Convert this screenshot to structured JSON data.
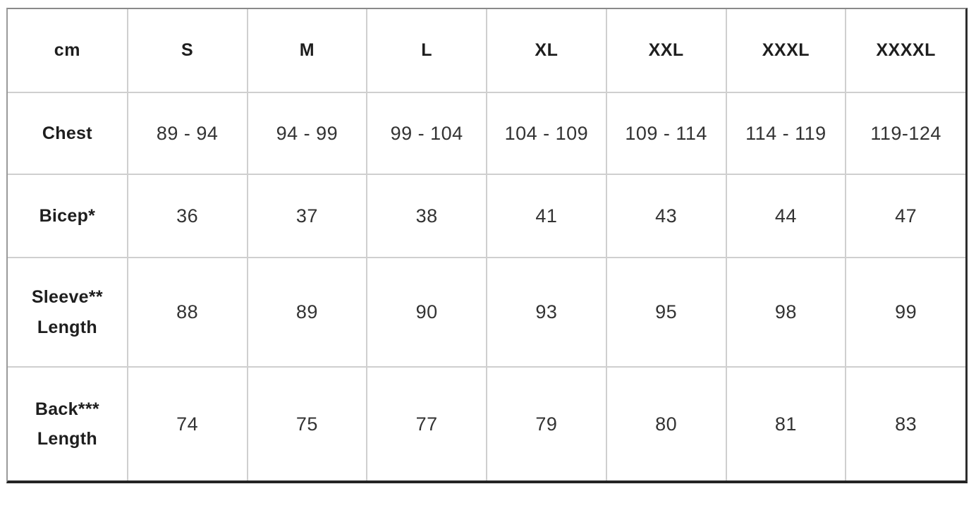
{
  "table": {
    "unit_label": "cm",
    "columns": [
      "S",
      "M",
      "L",
      "XL",
      "XXL",
      "XXXL",
      "XXXXL"
    ],
    "rows": [
      {
        "label": "Chest",
        "label_line2": "",
        "values": [
          "89 - 94",
          "94 - 99",
          "99 - 104",
          "104 - 109",
          "109 - 114",
          "114 - 119",
          "119-124"
        ]
      },
      {
        "label": "Bicep*",
        "label_line2": "",
        "values": [
          "36",
          "37",
          "38",
          "41",
          "43",
          "44",
          "47"
        ]
      },
      {
        "label": "Sleeve**",
        "label_line2": "Length",
        "values": [
          "88",
          "89",
          "90",
          "93",
          "95",
          "98",
          "99"
        ]
      },
      {
        "label": "Back***",
        "label_line2": "Length",
        "values": [
          "74",
          "75",
          "77",
          "79",
          "80",
          "81",
          "83"
        ]
      }
    ]
  },
  "colors": {
    "grid_line": "#cfcfcf",
    "outer_border_top": "#8a8a8a",
    "outer_border_left": "#9a9a9a",
    "outer_border_right": "#2e2e2e",
    "outer_border_bottom": "#242424",
    "label_text": "#1e1e1e",
    "value_text": "#333333",
    "background": "#ffffff"
  }
}
